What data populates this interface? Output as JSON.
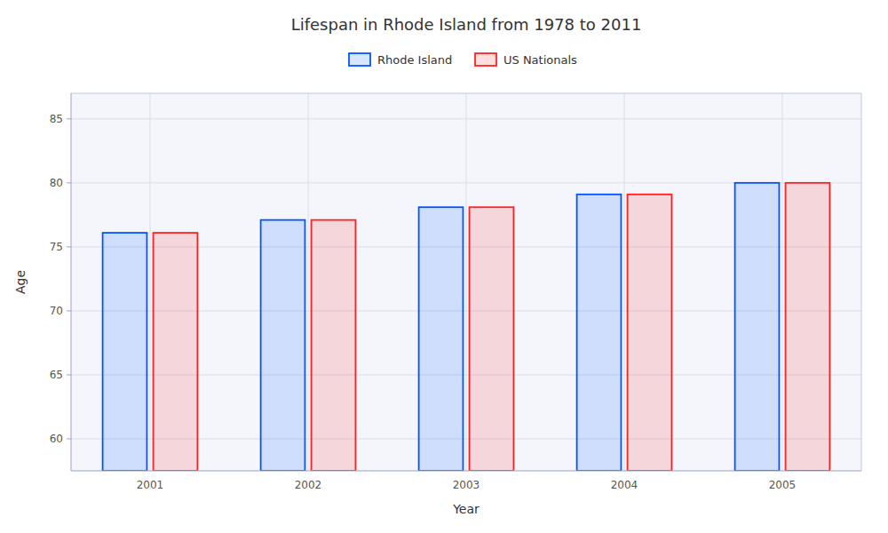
{
  "chart_data": {
    "type": "bar",
    "title": "Lifespan in Rhode Island from 1978 to 2011",
    "x_label": "Year",
    "y_label": "Age",
    "categories": [
      "2001",
      "2002",
      "2003",
      "2004",
      "2005"
    ],
    "series": [
      {
        "name": "Rhode Island",
        "color": "#0055ff",
        "values": [
          76.1,
          77.1,
          78.1,
          79.1,
          80.0
        ]
      },
      {
        "name": "US Nationals",
        "color": "#ff2222",
        "values": [
          76.1,
          77.1,
          78.1,
          79.1,
          80.0
        ]
      }
    ],
    "ylim": [
      57.5,
      87
    ],
    "yticks": [
      60,
      65,
      70,
      75,
      80,
      85
    ],
    "grid": true,
    "legend": "top"
  }
}
